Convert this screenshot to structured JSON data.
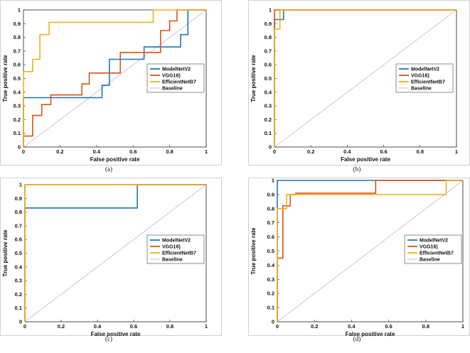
{
  "colors": {
    "ModelNetV2": "#1f77b4",
    "VGG16": "#d95319",
    "EfficientNetB7": "#edb120",
    "Baseline": "#c9a0dc"
  },
  "chart_data": [
    {
      "type": "line",
      "caption": "(a)",
      "xlabel": "False positive rate",
      "ylabel": "True positive rate",
      "xlim": [
        0,
        1
      ],
      "ylim": [
        0,
        1
      ],
      "xticks": [
        "0",
        "0.2",
        "0.4",
        "0.6",
        "0.8",
        "1"
      ],
      "yticks": [
        "0",
        "0.1",
        "0.2",
        "0.3",
        "0.4",
        "0.5",
        "0.6",
        "0.7",
        "0.8",
        "0.9",
        "1"
      ],
      "legend": "right",
      "series": [
        {
          "name": "ModelNetV2",
          "x": [
            0,
            0,
            0.43,
            0.43,
            0.47,
            0.47,
            0.66,
            0.66,
            0.86,
            0.86,
            0.9,
            0.9,
            1
          ],
          "y": [
            0,
            0.36,
            0.36,
            0.45,
            0.45,
            0.64,
            0.64,
            0.73,
            0.73,
            0.82,
            0.82,
            1,
            1
          ]
        },
        {
          "name": "VGG16)",
          "x": [
            0,
            0,
            0.05,
            0.05,
            0.1,
            0.1,
            0.15,
            0.15,
            0.32,
            0.32,
            0.36,
            0.36,
            0.53,
            0.53,
            0.75,
            0.75,
            0.8,
            0.8,
            0.84,
            0.84,
            1
          ],
          "y": [
            0,
            0.08,
            0.08,
            0.23,
            0.23,
            0.31,
            0.31,
            0.38,
            0.38,
            0.46,
            0.46,
            0.54,
            0.54,
            0.69,
            0.69,
            0.85,
            0.85,
            0.92,
            0.92,
            1,
            1
          ]
        },
        {
          "name": "EfficientNetB7",
          "x": [
            0,
            0,
            0.05,
            0.05,
            0.09,
            0.09,
            0.14,
            0.14,
            0.71,
            0.71,
            1
          ],
          "y": [
            0,
            0.55,
            0.55,
            0.64,
            0.64,
            0.82,
            0.82,
            0.91,
            0.91,
            1,
            1
          ]
        },
        {
          "name": "Baseline",
          "x": [
            0,
            1
          ],
          "y": [
            0,
            1
          ]
        }
      ]
    },
    {
      "type": "line",
      "caption": "(b)",
      "xlabel": "False positive rate",
      "ylabel": "True positive rate",
      "xlim": [
        0,
        1
      ],
      "ylim": [
        0,
        1
      ],
      "xticks": [
        "0",
        "0.2",
        "0.4",
        "0.6",
        "0.8",
        "1"
      ],
      "yticks": [
        "0",
        "0.1",
        "0.2",
        "0.3",
        "0.4",
        "0.5",
        "0.6",
        "0.7",
        "0.8",
        "0.9",
        "1"
      ],
      "legend": "right",
      "series": [
        {
          "name": "ModelNetV2",
          "x": [
            0,
            0,
            0.05,
            0.05,
            1
          ],
          "y": [
            0,
            0.93,
            0.93,
            1,
            1
          ]
        },
        {
          "name": "VGG16)",
          "x": [
            0,
            0,
            1
          ],
          "y": [
            0,
            1,
            1
          ]
        },
        {
          "name": "EfficientNetB7",
          "x": [
            0,
            0,
            0.03,
            0.03,
            1
          ],
          "y": [
            0,
            0.86,
            0.86,
            1,
            1
          ]
        },
        {
          "name": "Baseline",
          "x": [
            0,
            1
          ],
          "y": [
            0,
            1
          ]
        }
      ]
    },
    {
      "type": "line",
      "caption": "(c)",
      "xlabel": "False positive rate",
      "ylabel": "True positive rate",
      "xlim": [
        0,
        1
      ],
      "ylim": [
        0,
        1
      ],
      "xticks": [
        "0",
        "0.2",
        "0.4",
        "0.6",
        "0.8",
        "1"
      ],
      "yticks": [
        "0",
        "0.1",
        "0.2",
        "0.3",
        "0.4",
        "0.5",
        "0.6",
        "0.7",
        "0.8",
        "0.9",
        "1"
      ],
      "legend": "right",
      "series": [
        {
          "name": "ModelNetV2",
          "x": [
            0,
            0,
            0.62,
            0.62,
            1
          ],
          "y": [
            0,
            0.83,
            0.83,
            1,
            1
          ]
        },
        {
          "name": "VGG16)",
          "x": [
            0,
            0,
            1
          ],
          "y": [
            0,
            1,
            1
          ]
        },
        {
          "name": "EfficientNetB7",
          "x": [
            0,
            0,
            1
          ],
          "y": [
            0,
            1,
            1
          ]
        },
        {
          "name": "Baseline",
          "x": [
            0,
            1
          ],
          "y": [
            0,
            1
          ]
        }
      ]
    },
    {
      "type": "line",
      "caption": "(d)",
      "xlabel": "False positive rate",
      "ylabel": "True positive rate",
      "xlim": [
        0,
        1
      ],
      "ylim": [
        0,
        1
      ],
      "xticks": [
        "0",
        "0.2",
        "0.4",
        "0.6",
        "0.8",
        "1"
      ],
      "yticks": [
        "0",
        "0.1",
        "0.2",
        "0.3",
        "0.4",
        "0.5",
        "0.6",
        "0.7",
        "0.8",
        "0.9",
        "1"
      ],
      "legend": "right",
      "series": [
        {
          "name": "ModelNetV2",
          "x": [
            0,
            0,
            1
          ],
          "y": [
            0,
            1,
            1
          ]
        },
        {
          "name": "VGG16)",
          "x": [
            0,
            0,
            0.03,
            0.03,
            0.07,
            0.07,
            0.1,
            0.1,
            0.53,
            0.53,
            0.91,
            0.91,
            1
          ],
          "y": [
            0,
            0.45,
            0.45,
            0.82,
            0.82,
            0.9,
            0.9,
            0.91,
            0.91,
            1,
            1,
            1,
            1
          ]
        },
        {
          "name": "EfficientNetB7",
          "x": [
            0,
            0,
            0.05,
            0.05,
            0.91,
            0.91,
            1
          ],
          "y": [
            0,
            0.8,
            0.8,
            0.9,
            0.9,
            1,
            1
          ]
        },
        {
          "name": "Baseline",
          "x": [
            0,
            1
          ],
          "y": [
            0,
            1
          ]
        }
      ]
    }
  ]
}
